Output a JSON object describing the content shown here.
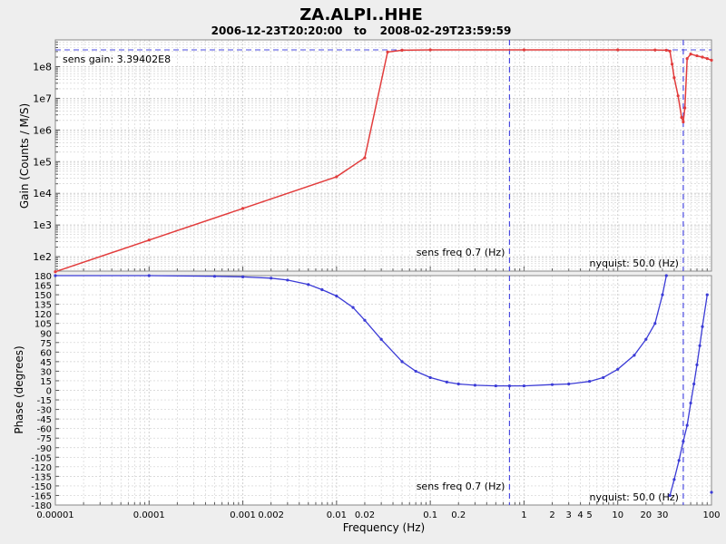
{
  "title": "ZA.ALPI..HHE",
  "subtitle": {
    "start": "2006-12-23T20:20:00",
    "sep": "to",
    "end": "2008-02-29T23:59:59"
  },
  "colors": {
    "gain": "#e23c3c",
    "phase": "#3b3bd6",
    "guide": "#4a4ae0",
    "background": "#eeeeee",
    "plot_bg": "#ffffff"
  },
  "chart_data": [
    {
      "type": "line",
      "title": "",
      "ylabel": "Gain (Counts / M/S)",
      "xlabel": "",
      "xscale": "log",
      "yscale": "log",
      "xlim": [
        1e-05,
        100
      ],
      "ylim": [
        35,
        700000000
      ],
      "ytick_labels": [
        "1e2",
        "1e3",
        "1e4",
        "1e5",
        "1e6",
        "1e7",
        "1e8"
      ],
      "grid": true,
      "series": [
        {
          "name": "",
          "x": [
            1e-05,
            0.0001,
            0.001,
            0.01,
            0.02,
            0.035,
            0.05,
            0.1,
            1,
            10,
            25,
            33,
            36,
            38,
            40,
            44,
            48,
            50,
            52,
            55,
            60,
            70,
            80,
            90,
            100
          ],
          "y": [
            33.4,
            334,
            3340,
            33400,
            132000,
            290000000,
            330000000,
            339000000,
            339000000,
            339000000,
            337000000,
            330000000,
            310000000,
            120000000,
            45000000,
            12000000,
            2500000,
            1800000,
            5000000,
            180000000,
            250000000,
            220000000,
            200000000,
            180000000,
            160000000
          ]
        }
      ],
      "annotations": {
        "sens_gain": "sens gain: 3.39402E8",
        "sens_freq": "sens freq 0.7 (Hz)",
        "nyquist": "nyquist: 50.0 (Hz)"
      },
      "sens_gain_value": 339402000,
      "sens_freq_value": 0.7,
      "nyquist_value": 50
    },
    {
      "type": "line",
      "title": "",
      "ylabel": "Phase (degrees)",
      "xlabel": "Frequency (Hz)",
      "xscale": "log",
      "xlim": [
        1e-05,
        100
      ],
      "ylim": [
        -180,
        180
      ],
      "yticks": [
        -180,
        -165,
        -150,
        -135,
        -120,
        -105,
        -90,
        -75,
        -60,
        -45,
        -30,
        -15,
        0,
        15,
        30,
        45,
        60,
        75,
        90,
        105,
        120,
        135,
        150,
        165,
        180
      ],
      "xtick_labels": [
        "0.00001",
        "0.0001",
        "0.001",
        "0.002",
        "0.01",
        "0.02",
        "0.1",
        "0.2",
        "1",
        "2",
        "3",
        "4",
        "5",
        "10",
        "20",
        "30",
        "100"
      ],
      "grid": true,
      "series": [
        {
          "name": "",
          "x": [
            1e-05,
            0.0001,
            0.0005,
            0.001,
            0.002,
            0.003,
            0.005,
            0.007,
            0.01,
            0.015,
            0.02,
            0.03,
            0.05,
            0.07,
            0.1,
            0.15,
            0.2,
            0.3,
            0.5,
            0.7,
            1,
            2,
            3,
            5,
            7,
            10,
            15,
            20,
            25,
            30,
            33,
            36,
            40,
            45,
            50,
            55,
            60,
            65,
            70,
            75,
            80,
            90,
            100
          ],
          "y": [
            180,
            180,
            179,
            178,
            176,
            173,
            166,
            158,
            148,
            130,
            110,
            80,
            45,
            30,
            20,
            13,
            10,
            8,
            7,
            7,
            7,
            9,
            10,
            14,
            20,
            33,
            55,
            80,
            105,
            150,
            180,
            -165,
            -140,
            -110,
            -80,
            -55,
            -20,
            10,
            40,
            70,
            100,
            150,
            -160
          ]
        }
      ],
      "annotations": {
        "sens_freq": "sens freq 0.7 (Hz)",
        "nyquist": "nyquist: 50.0 (Hz)"
      }
    }
  ]
}
